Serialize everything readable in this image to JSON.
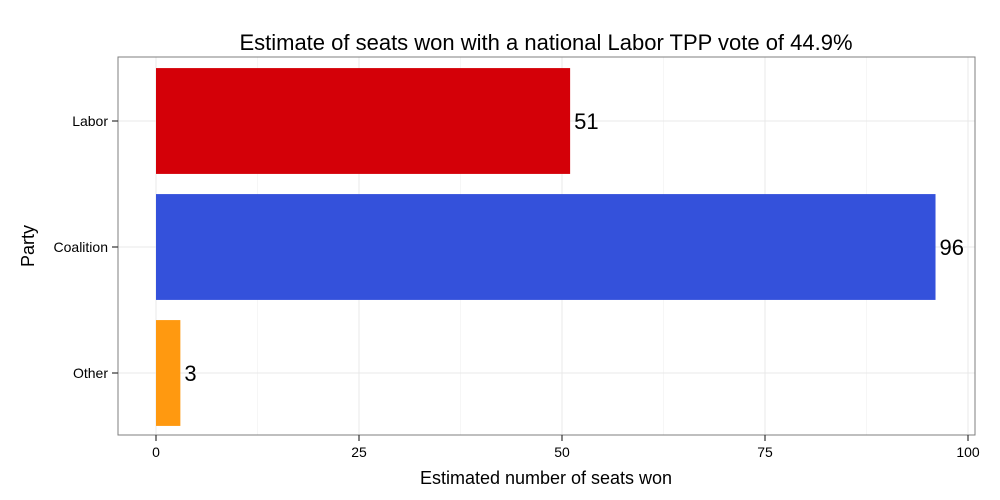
{
  "chart_data": {
    "type": "bar",
    "orientation": "horizontal",
    "title": "Estimate of seats won with a national Labor TPP vote of 44.9%",
    "xlabel": "Estimated number of seats won",
    "ylabel": "Party",
    "categories": [
      "Labor",
      "Coalition",
      "Other"
    ],
    "values": [
      51,
      96,
      3
    ],
    "data_labels": [
      "51",
      "96",
      "3"
    ],
    "colors": [
      "#D40008",
      "#3451DB",
      "#FF9910"
    ],
    "xlim": [
      0,
      100
    ],
    "xticks": [
      0,
      25,
      50,
      75,
      100
    ],
    "xtick_labels": [
      "0",
      "25",
      "50",
      "75",
      "100"
    ],
    "grid": true,
    "legend": "none"
  }
}
